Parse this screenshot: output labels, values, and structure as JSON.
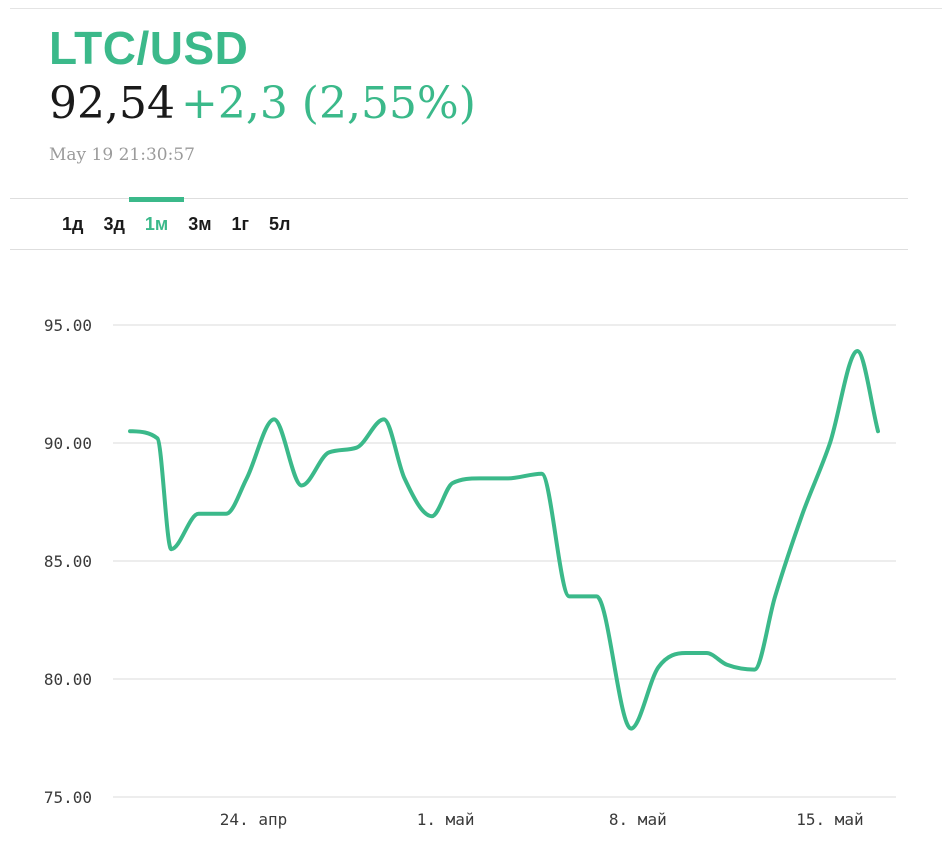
{
  "header": {
    "symbol": "LTC/USD",
    "price": "92,54",
    "change": "+2,3 (2,55%)",
    "timestamp": "May 19 21:30:57"
  },
  "tabs": [
    {
      "label": "1д",
      "active": false
    },
    {
      "label": "3д",
      "active": false
    },
    {
      "label": "1м",
      "active": true
    },
    {
      "label": "3м",
      "active": false
    },
    {
      "label": "1г",
      "active": false
    },
    {
      "label": "5л",
      "active": false
    }
  ],
  "colors": {
    "accent": "#3bb98a",
    "text": "#1a1a1a",
    "muted": "#9b9b9b",
    "grid": "#e2e2e2"
  },
  "chart_data": {
    "type": "line",
    "title": "",
    "xlabel": "",
    "ylabel": "",
    "ylim": [
      75,
      95
    ],
    "grid": true,
    "yticks": [
      {
        "value": 95,
        "label": "95.00"
      },
      {
        "value": 90,
        "label": "90.00"
      },
      {
        "value": 85,
        "label": "85.00"
      },
      {
        "value": 80,
        "label": "80.00"
      },
      {
        "value": 75,
        "label": "75.00"
      }
    ],
    "xticks": [
      {
        "value": "2018-04-24",
        "label": "24. апр"
      },
      {
        "value": "2018-05-01",
        "label": "1. май"
      },
      {
        "value": "2018-05-08",
        "label": "8. май"
      },
      {
        "value": "2018-05-15",
        "label": "15. май"
      }
    ],
    "xlim": [
      "2018-04-19",
      "2018-05-19"
    ],
    "series": [
      {
        "color": "#3bb98a",
        "points": [
          [
            "2018-04-19 12:00",
            90.5
          ],
          [
            "2018-04-20 12:00",
            90.2
          ],
          [
            "2018-04-21 00:00",
            85.5
          ],
          [
            "2018-04-22 00:00",
            87.0
          ],
          [
            "2018-04-23 00:00",
            87.0
          ],
          [
            "2018-04-23 18:00",
            88.5
          ],
          [
            "2018-04-24 18:00",
            91.0
          ],
          [
            "2018-04-25 18:00",
            88.2
          ],
          [
            "2018-04-26 18:00",
            89.6
          ],
          [
            "2018-04-27 18:00",
            89.8
          ],
          [
            "2018-04-28 18:00",
            91.0
          ],
          [
            "2018-04-29 12:00",
            88.5
          ],
          [
            "2018-04-30 12:00",
            86.9
          ],
          [
            "2018-05-01 06:00",
            88.3
          ],
          [
            "2018-05-02 06:00",
            88.5
          ],
          [
            "2018-05-03 06:00",
            88.5
          ],
          [
            "2018-05-04 12:00",
            88.7
          ],
          [
            "2018-05-05 12:00",
            83.5
          ],
          [
            "2018-05-06 12:00",
            83.5
          ],
          [
            "2018-05-07 18:00",
            77.9
          ],
          [
            "2018-05-08 18:00",
            80.5
          ],
          [
            "2018-05-09 18:00",
            81.1
          ],
          [
            "2018-05-10 12:00",
            81.1
          ],
          [
            "2018-05-11 06:00",
            80.6
          ],
          [
            "2018-05-12 06:00",
            80.4
          ],
          [
            "2018-05-13 00:00",
            83.5
          ],
          [
            "2018-05-14 00:00",
            87.0
          ],
          [
            "2018-05-15 00:00",
            90.0
          ],
          [
            "2018-05-16 00:00",
            93.9
          ],
          [
            "2018-05-16 18:00",
            90.5
          ]
        ]
      }
    ]
  }
}
